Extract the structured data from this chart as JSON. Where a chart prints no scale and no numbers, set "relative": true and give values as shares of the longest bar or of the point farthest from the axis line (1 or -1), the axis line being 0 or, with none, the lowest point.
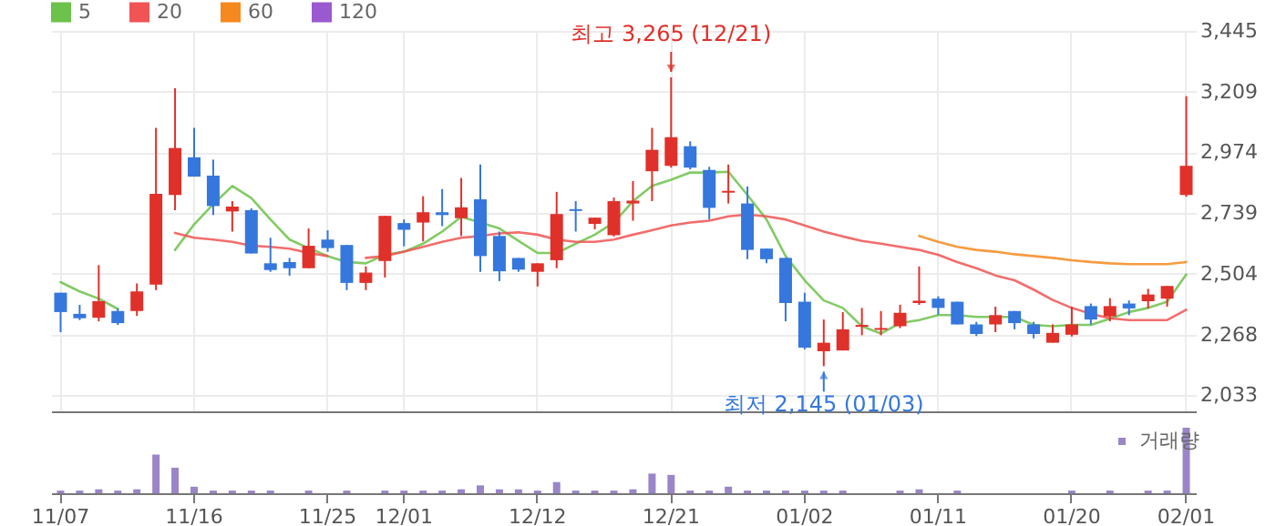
{
  "chart_data": [
    {
      "type": "candlestick",
      "categories": [
        "11/07",
        null,
        null,
        null,
        null,
        null,
        null,
        "11/16",
        null,
        null,
        null,
        null,
        null,
        null,
        "11/25",
        null,
        null,
        null,
        "12/01",
        null,
        null,
        null,
        null,
        null,
        null,
        "12/12",
        null,
        null,
        null,
        null,
        null,
        null,
        "12/21",
        null,
        null,
        null,
        null,
        null,
        null,
        "01/02",
        null,
        null,
        null,
        null,
        null,
        null,
        "01/11",
        null,
        null,
        null,
        null,
        null,
        null,
        "01/20",
        null,
        null,
        null,
        null,
        null,
        "02/01"
      ],
      "ohlc": [
        [
          2430,
          2430,
          2277,
          2355
        ],
        [
          2348,
          2383,
          2324,
          2331
        ],
        [
          2333,
          2537,
          2319,
          2397
        ],
        [
          2359,
          2369,
          2305,
          2312
        ],
        [
          2359,
          2466,
          2340,
          2435
        ],
        [
          2461,
          3069,
          2440,
          2813
        ],
        [
          2809,
          3223,
          2750,
          2991
        ],
        [
          2955,
          3069,
          2880,
          2880
        ],
        [
          2884,
          2946,
          2731,
          2766
        ],
        [
          2745,
          2785,
          2667,
          2764
        ],
        [
          2750,
          2757,
          2582,
          2582
        ],
        [
          2544,
          2643,
          2511,
          2518
        ],
        [
          2549,
          2565,
          2496,
          2525
        ],
        [
          2525,
          2679,
          2525,
          2612
        ],
        [
          2636,
          2672,
          2589,
          2603
        ],
        [
          2615,
          2615,
          2440,
          2468
        ],
        [
          2468,
          2532,
          2440,
          2508
        ],
        [
          2553,
          2728,
          2489,
          2728
        ],
        [
          2700,
          2714,
          2610,
          2674
        ],
        [
          2702,
          2804,
          2629,
          2742
        ],
        [
          2742,
          2832,
          2688,
          2731
        ],
        [
          2719,
          2875,
          2650,
          2761
        ],
        [
          2792,
          2927,
          2511,
          2572
        ],
        [
          2650,
          2667,
          2475,
          2513
        ],
        [
          2565,
          2565,
          2511,
          2520
        ],
        [
          2511,
          2544,
          2454,
          2544
        ],
        [
          2556,
          2821,
          2525,
          2735
        ],
        [
          2754,
          2785,
          2667,
          2747
        ],
        [
          2697,
          2721,
          2676,
          2721
        ],
        [
          2653,
          2799,
          2648,
          2785
        ],
        [
          2776,
          2863,
          2709,
          2787
        ],
        [
          2901,
          3069,
          2785,
          2984
        ],
        [
          2922,
          3265,
          2915,
          3033
        ],
        [
          2998,
          3017,
          2908,
          2915
        ],
        [
          2906,
          2918,
          2714,
          2759
        ],
        [
          2818,
          2927,
          2776,
          2825
        ],
        [
          2776,
          2842,
          2560,
          2596
        ],
        [
          2601,
          2601,
          2544,
          2560
        ],
        [
          2565,
          2565,
          2319,
          2390
        ],
        [
          2395,
          2430,
          2210,
          2217
        ],
        [
          2203,
          2326,
          2145,
          2236
        ],
        [
          2206,
          2355,
          2206,
          2288
        ],
        [
          2298,
          2371,
          2265,
          2305
        ],
        [
          2286,
          2359,
          2265,
          2293
        ],
        [
          2300,
          2383,
          2293,
          2352
        ],
        [
          2390,
          2532,
          2383,
          2399
        ],
        [
          2407,
          2416,
          2345,
          2371
        ],
        [
          2395,
          2395,
          2307,
          2307
        ],
        [
          2307,
          2317,
          2262,
          2270
        ],
        [
          2307,
          2376,
          2277,
          2343
        ],
        [
          2359,
          2359,
          2288,
          2312
        ],
        [
          2307,
          2317,
          2253,
          2270
        ],
        [
          2236,
          2307,
          2236,
          2274
        ],
        [
          2267,
          2376,
          2260,
          2307
        ],
        [
          2378,
          2388,
          2307,
          2326
        ],
        [
          2338,
          2409,
          2319,
          2378
        ],
        [
          2388,
          2400,
          2343,
          2369
        ],
        [
          2397,
          2445,
          2369,
          2423
        ],
        [
          2407,
          2456,
          2376,
          2456
        ],
        [
          2809,
          3192,
          2802,
          2922
        ]
      ],
      "series": [
        {
          "name": "5",
          "type": "line",
          "color": "#6cc24a",
          "values": [
            2471,
            2435,
            2407,
            2367,
            null,
            null,
            2596,
            2695,
            2773,
            2844,
            2797,
            2714,
            2636,
            2603,
            2572,
            2549,
            2544,
            2577,
            2589,
            2620,
            2667,
            2724,
            2702,
            2679,
            2631,
            2584,
            2584,
            2620,
            2655,
            2702,
            2785,
            2844,
            2868,
            2896,
            2896,
            2899,
            2809,
            2714,
            2572,
            2478,
            2400,
            2371,
            2300,
            2272,
            2312,
            2324,
            2343,
            2343,
            2336,
            2336,
            2336,
            2305,
            2300,
            2305,
            2305,
            2329,
            2355,
            2371,
            2395,
            2501
          ]
        },
        {
          "name": "20",
          "type": "line",
          "color": "#f05454",
          "values": [
            null,
            null,
            null,
            null,
            null,
            null,
            2662,
            2643,
            2636,
            2627,
            2612,
            2608,
            2601,
            2584,
            2572,
            null,
            2565,
            2572,
            2589,
            2608,
            2627,
            2643,
            2650,
            2660,
            2664,
            2655,
            2636,
            2627,
            2627,
            2636,
            2655,
            2672,
            2691,
            2702,
            2709,
            2726,
            2733,
            2726,
            2714,
            2691,
            2667,
            2648,
            2631,
            2620,
            2608,
            2596,
            2577,
            2549,
            2525,
            2497,
            2478,
            2442,
            2402,
            2371,
            2348,
            2331,
            2324,
            2324,
            2324,
            2364
          ]
        },
        {
          "name": "60",
          "type": "line",
          "color": "#f5891f",
          "values": [
            null,
            null,
            null,
            null,
            null,
            null,
            null,
            null,
            null,
            null,
            null,
            null,
            null,
            null,
            null,
            null,
            null,
            null,
            null,
            null,
            null,
            null,
            null,
            null,
            null,
            null,
            null,
            null,
            null,
            null,
            null,
            null,
            null,
            null,
            null,
            null,
            null,
            null,
            null,
            null,
            null,
            null,
            null,
            null,
            null,
            2650,
            2627,
            2608,
            2596,
            2589,
            2579,
            2572,
            2565,
            2556,
            2549,
            2544,
            2541,
            2541,
            2541,
            2549
          ]
        },
        {
          "name": "120",
          "type": "line",
          "color": "#9b59d0",
          "values": [
            null,
            null,
            null,
            null,
            null,
            null,
            null,
            null,
            null,
            null,
            null,
            null,
            null,
            null,
            null,
            null,
            null,
            null,
            null,
            null,
            null,
            null,
            null,
            null,
            null,
            null,
            null,
            null,
            null,
            null,
            null,
            null,
            null,
            null,
            null,
            null,
            null,
            null,
            null,
            null,
            null,
            null,
            null,
            null,
            null,
            null,
            null,
            null,
            null,
            null,
            null,
            null,
            null,
            null,
            null,
            null,
            null,
            null,
            null,
            null
          ]
        }
      ],
      "ylim": [
        1970,
        3445
      ],
      "yticks": [
        {
          "value": 2033,
          "label": "2,033"
        },
        {
          "value": 2268,
          "label": "2,268"
        },
        {
          "value": 2504,
          "label": "2,504"
        },
        {
          "value": 2739,
          "label": "2,739"
        },
        {
          "value": 2974,
          "label": "2,974"
        },
        {
          "value": 3209,
          "label": "3,209"
        },
        {
          "value": 3445,
          "label": "3,445"
        }
      ],
      "grid": true,
      "legend": "top left",
      "tick_labels": "y",
      "annotations": [
        {
          "text": "최고 3,265 (12/21)",
          "x": "12/21",
          "y": 3265
        },
        {
          "text": "최저 2,145 (01/03)",
          "y": 2145
        }
      ]
    },
    {
      "type": "bar",
      "relative": true,
      "categories": [
        "11/07",
        null,
        null,
        null,
        null,
        null,
        null,
        "11/16",
        null,
        null,
        null,
        null,
        null,
        null,
        "11/25",
        null,
        null,
        null,
        "12/01",
        null,
        null,
        null,
        null,
        null,
        null,
        "12/12",
        null,
        null,
        null,
        null,
        null,
        null,
        "12/21",
        null,
        null,
        null,
        null,
        null,
        null,
        "01/02",
        null,
        null,
        null,
        null,
        null,
        null,
        "01/11",
        null,
        null,
        null,
        null,
        null,
        null,
        "01/20",
        null,
        null,
        null,
        null,
        null,
        "02/01"
      ],
      "series": [
        {
          "name": "거래량",
          "color": "#9a85c9",
          "values": [
            0.04,
            0.04,
            0.06,
            0.04,
            0.06,
            0.59,
            0.39,
            0.1,
            0.04,
            0.04,
            0.04,
            0.04,
            0,
            0.04,
            0,
            0.04,
            0,
            0.04,
            0.04,
            0.04,
            0.04,
            0.06,
            0.12,
            0.06,
            0.06,
            0.04,
            0.17,
            0.04,
            0.04,
            0.04,
            0.06,
            0.3,
            0.28,
            0.04,
            0.04,
            0.1,
            0.04,
            0.04,
            0.04,
            0.04,
            0.04,
            0.04,
            0,
            0,
            0.04,
            0.06,
            0,
            0.04,
            0,
            0,
            0,
            0,
            0,
            0.04,
            0,
            0.04,
            0,
            0.04,
            0.04,
            1
          ]
        }
      ],
      "legend": "top right"
    }
  ]
}
